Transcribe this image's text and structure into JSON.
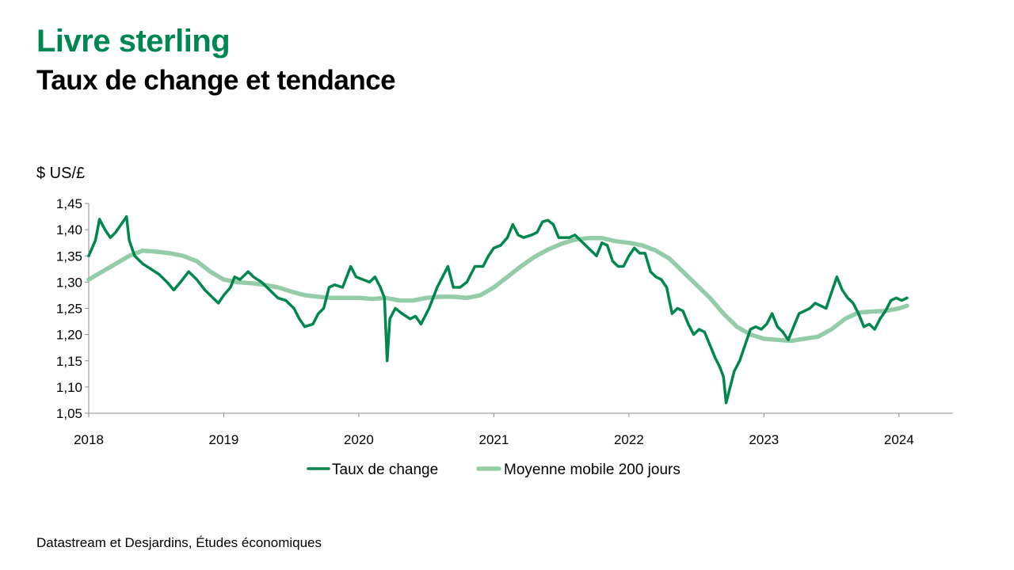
{
  "header": {
    "title": "Livre sterling",
    "subtitle": "Taux de change et tendance"
  },
  "footer": {
    "source": "Datastream et Desjardins, Études économiques"
  },
  "chart_data": {
    "type": "line",
    "ylabel": "$ US/£",
    "ylim": [
      1.05,
      1.45
    ],
    "yticks": [
      "1,05",
      "1,10",
      "1,15",
      "1,20",
      "1,25",
      "1,30",
      "1,35",
      "1,40",
      "1,45"
    ],
    "xlim": [
      2018.0,
      2024.4
    ],
    "xticks": [
      "2018",
      "2019",
      "2020",
      "2021",
      "2022",
      "2023",
      "2024"
    ],
    "grid": false,
    "legend_position": "bottom",
    "series": [
      {
        "name": "Taux de change",
        "color": "#00874e",
        "points": [
          [
            2018.0,
            1.35
          ],
          [
            2018.05,
            1.38
          ],
          [
            2018.08,
            1.42
          ],
          [
            2018.12,
            1.4
          ],
          [
            2018.16,
            1.385
          ],
          [
            2018.2,
            1.395
          ],
          [
            2018.24,
            1.41
          ],
          [
            2018.28,
            1.425
          ],
          [
            2018.3,
            1.38
          ],
          [
            2018.34,
            1.35
          ],
          [
            2018.4,
            1.335
          ],
          [
            2018.46,
            1.325
          ],
          [
            2018.52,
            1.315
          ],
          [
            2018.58,
            1.3
          ],
          [
            2018.63,
            1.285
          ],
          [
            2018.68,
            1.3
          ],
          [
            2018.74,
            1.32
          ],
          [
            2018.8,
            1.305
          ],
          [
            2018.86,
            1.285
          ],
          [
            2018.92,
            1.27
          ],
          [
            2018.96,
            1.26
          ],
          [
            2019.0,
            1.275
          ],
          [
            2019.05,
            1.29
          ],
          [
            2019.08,
            1.31
          ],
          [
            2019.12,
            1.305
          ],
          [
            2019.18,
            1.32
          ],
          [
            2019.22,
            1.31
          ],
          [
            2019.28,
            1.3
          ],
          [
            2019.34,
            1.285
          ],
          [
            2019.4,
            1.27
          ],
          [
            2019.46,
            1.265
          ],
          [
            2019.52,
            1.25
          ],
          [
            2019.56,
            1.23
          ],
          [
            2019.6,
            1.215
          ],
          [
            2019.66,
            1.22
          ],
          [
            2019.7,
            1.24
          ],
          [
            2019.74,
            1.25
          ],
          [
            2019.78,
            1.29
          ],
          [
            2019.82,
            1.295
          ],
          [
            2019.88,
            1.29
          ],
          [
            2019.94,
            1.33
          ],
          [
            2019.98,
            1.31
          ],
          [
            2020.03,
            1.305
          ],
          [
            2020.08,
            1.3
          ],
          [
            2020.12,
            1.31
          ],
          [
            2020.16,
            1.29
          ],
          [
            2020.19,
            1.27
          ],
          [
            2020.21,
            1.15
          ],
          [
            2020.23,
            1.23
          ],
          [
            2020.27,
            1.25
          ],
          [
            2020.32,
            1.24
          ],
          [
            2020.38,
            1.23
          ],
          [
            2020.42,
            1.235
          ],
          [
            2020.46,
            1.22
          ],
          [
            2020.52,
            1.25
          ],
          [
            2020.58,
            1.29
          ],
          [
            2020.62,
            1.31
          ],
          [
            2020.66,
            1.33
          ],
          [
            2020.7,
            1.29
          ],
          [
            2020.75,
            1.29
          ],
          [
            2020.8,
            1.3
          ],
          [
            2020.86,
            1.33
          ],
          [
            2020.92,
            1.33
          ],
          [
            2020.96,
            1.35
          ],
          [
            2021.0,
            1.365
          ],
          [
            2021.05,
            1.37
          ],
          [
            2021.1,
            1.385
          ],
          [
            2021.14,
            1.41
          ],
          [
            2021.18,
            1.39
          ],
          [
            2021.22,
            1.385
          ],
          [
            2021.28,
            1.39
          ],
          [
            2021.32,
            1.395
          ],
          [
            2021.36,
            1.415
          ],
          [
            2021.4,
            1.418
          ],
          [
            2021.44,
            1.41
          ],
          [
            2021.48,
            1.385
          ],
          [
            2021.52,
            1.385
          ],
          [
            2021.56,
            1.385
          ],
          [
            2021.6,
            1.39
          ],
          [
            2021.64,
            1.38
          ],
          [
            2021.68,
            1.37
          ],
          [
            2021.72,
            1.36
          ],
          [
            2021.76,
            1.35
          ],
          [
            2021.8,
            1.375
          ],
          [
            2021.84,
            1.37
          ],
          [
            2021.88,
            1.34
          ],
          [
            2021.92,
            1.33
          ],
          [
            2021.96,
            1.33
          ],
          [
            2022.0,
            1.35
          ],
          [
            2022.04,
            1.365
          ],
          [
            2022.08,
            1.355
          ],
          [
            2022.12,
            1.355
          ],
          [
            2022.16,
            1.32
          ],
          [
            2022.2,
            1.31
          ],
          [
            2022.24,
            1.305
          ],
          [
            2022.28,
            1.29
          ],
          [
            2022.32,
            1.24
          ],
          [
            2022.36,
            1.25
          ],
          [
            2022.4,
            1.245
          ],
          [
            2022.44,
            1.22
          ],
          [
            2022.48,
            1.2
          ],
          [
            2022.52,
            1.21
          ],
          [
            2022.56,
            1.205
          ],
          [
            2022.6,
            1.18
          ],
          [
            2022.64,
            1.155
          ],
          [
            2022.67,
            1.14
          ],
          [
            2022.7,
            1.12
          ],
          [
            2022.72,
            1.07
          ],
          [
            2022.75,
            1.1
          ],
          [
            2022.78,
            1.13
          ],
          [
            2022.82,
            1.15
          ],
          [
            2022.86,
            1.18
          ],
          [
            2022.9,
            1.21
          ],
          [
            2022.94,
            1.215
          ],
          [
            2022.98,
            1.21
          ],
          [
            2023.02,
            1.22
          ],
          [
            2023.06,
            1.24
          ],
          [
            2023.1,
            1.215
          ],
          [
            2023.14,
            1.205
          ],
          [
            2023.18,
            1.19
          ],
          [
            2023.22,
            1.215
          ],
          [
            2023.26,
            1.24
          ],
          [
            2023.3,
            1.245
          ],
          [
            2023.34,
            1.25
          ],
          [
            2023.38,
            1.26
          ],
          [
            2023.42,
            1.255
          ],
          [
            2023.46,
            1.25
          ],
          [
            2023.5,
            1.28
          ],
          [
            2023.54,
            1.31
          ],
          [
            2023.58,
            1.285
          ],
          [
            2023.62,
            1.27
          ],
          [
            2023.66,
            1.26
          ],
          [
            2023.7,
            1.24
          ],
          [
            2023.74,
            1.215
          ],
          [
            2023.78,
            1.22
          ],
          [
            2023.82,
            1.21
          ],
          [
            2023.86,
            1.23
          ],
          [
            2023.9,
            1.245
          ],
          [
            2023.94,
            1.265
          ],
          [
            2023.98,
            1.27
          ],
          [
            2024.02,
            1.265
          ],
          [
            2024.06,
            1.27
          ]
        ]
      },
      {
        "name": "Moyenne mobile 200 jours",
        "color": "#94ccaa",
        "points": [
          [
            2018.0,
            1.305
          ],
          [
            2018.1,
            1.32
          ],
          [
            2018.2,
            1.335
          ],
          [
            2018.3,
            1.35
          ],
          [
            2018.4,
            1.36
          ],
          [
            2018.5,
            1.358
          ],
          [
            2018.6,
            1.355
          ],
          [
            2018.7,
            1.35
          ],
          [
            2018.8,
            1.34
          ],
          [
            2018.9,
            1.32
          ],
          [
            2019.0,
            1.305
          ],
          [
            2019.1,
            1.3
          ],
          [
            2019.2,
            1.298
          ],
          [
            2019.3,
            1.295
          ],
          [
            2019.4,
            1.29
          ],
          [
            2019.5,
            1.282
          ],
          [
            2019.6,
            1.275
          ],
          [
            2019.7,
            1.272
          ],
          [
            2019.8,
            1.27
          ],
          [
            2019.9,
            1.27
          ],
          [
            2020.0,
            1.27
          ],
          [
            2020.1,
            1.268
          ],
          [
            2020.2,
            1.27
          ],
          [
            2020.3,
            1.265
          ],
          [
            2020.4,
            1.265
          ],
          [
            2020.5,
            1.27
          ],
          [
            2020.6,
            1.272
          ],
          [
            2020.7,
            1.272
          ],
          [
            2020.8,
            1.27
          ],
          [
            2020.9,
            1.275
          ],
          [
            2021.0,
            1.29
          ],
          [
            2021.1,
            1.31
          ],
          [
            2021.2,
            1.33
          ],
          [
            2021.3,
            1.348
          ],
          [
            2021.4,
            1.362
          ],
          [
            2021.5,
            1.373
          ],
          [
            2021.6,
            1.381
          ],
          [
            2021.7,
            1.384
          ],
          [
            2021.8,
            1.384
          ],
          [
            2021.9,
            1.378
          ],
          [
            2022.0,
            1.375
          ],
          [
            2022.1,
            1.37
          ],
          [
            2022.2,
            1.36
          ],
          [
            2022.3,
            1.345
          ],
          [
            2022.4,
            1.32
          ],
          [
            2022.5,
            1.295
          ],
          [
            2022.6,
            1.27
          ],
          [
            2022.7,
            1.24
          ],
          [
            2022.8,
            1.215
          ],
          [
            2022.9,
            1.2
          ],
          [
            2023.0,
            1.192
          ],
          [
            2023.1,
            1.19
          ],
          [
            2023.2,
            1.188
          ],
          [
            2023.3,
            1.192
          ],
          [
            2023.4,
            1.196
          ],
          [
            2023.5,
            1.21
          ],
          [
            2023.6,
            1.23
          ],
          [
            2023.7,
            1.242
          ],
          [
            2023.8,
            1.244
          ],
          [
            2023.9,
            1.245
          ],
          [
            2024.0,
            1.25
          ],
          [
            2024.06,
            1.255
          ]
        ]
      }
    ]
  }
}
